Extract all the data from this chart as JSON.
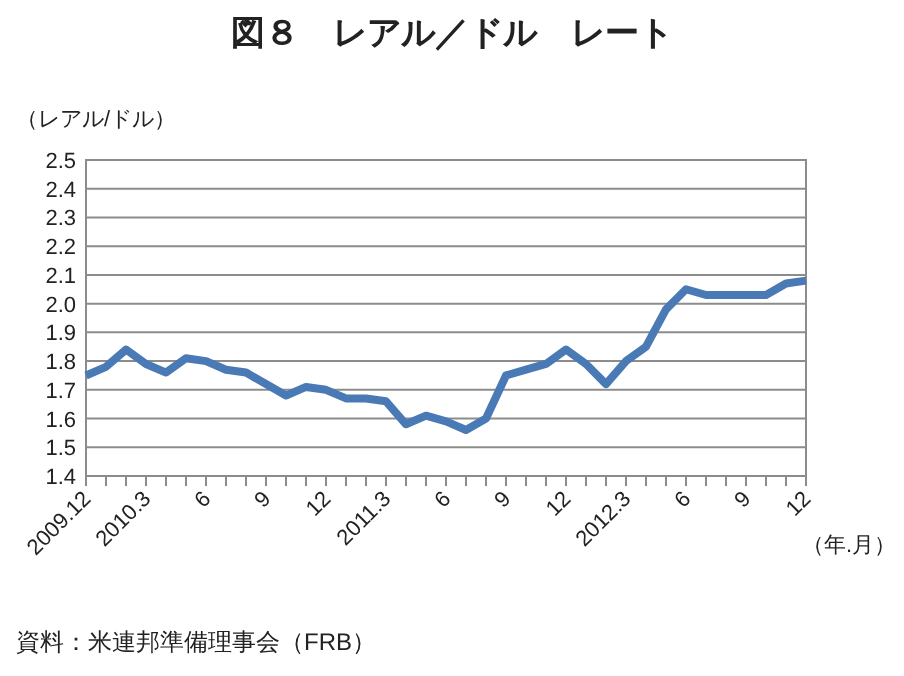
{
  "chart_data": {
    "type": "line",
    "title": "図８　レアル／ドル　レート",
    "ylabel": "（レアル/ドル）",
    "xlabel": "（年.月）",
    "annotations": [
      "資料：米連邦準備理事会（FRB）"
    ],
    "categories": [
      "2009.12",
      null,
      null,
      "2010.3",
      null,
      null,
      "6",
      null,
      null,
      "9",
      null,
      null,
      "12",
      null,
      null,
      "2011.3",
      null,
      null,
      "6",
      null,
      null,
      "9",
      null,
      null,
      "12",
      null,
      null,
      "2012.3",
      null,
      null,
      "6",
      null,
      null,
      "9",
      null,
      null,
      "12"
    ],
    "series": [
      {
        "color": "#4a7ab5",
        "values": [
          1.75,
          1.78,
          1.84,
          1.79,
          1.76,
          1.81,
          1.8,
          1.77,
          1.76,
          1.72,
          1.68,
          1.71,
          1.7,
          1.67,
          1.67,
          1.66,
          1.58,
          1.61,
          1.59,
          1.56,
          1.6,
          1.75,
          1.77,
          1.79,
          1.84,
          1.79,
          1.72,
          1.8,
          1.85,
          1.98,
          2.05,
          2.03,
          2.03,
          2.03,
          2.03,
          2.07,
          2.08
        ]
      }
    ],
    "ylim": [
      1.4,
      2.5
    ],
    "yticks": [
      1.4,
      1.5,
      1.6,
      1.7,
      1.8,
      1.9,
      {
        "value": 2.0,
        "label": "2.0"
      },
      2.1,
      2.2,
      2.3,
      2.4,
      2.5
    ],
    "grid": "y"
  }
}
